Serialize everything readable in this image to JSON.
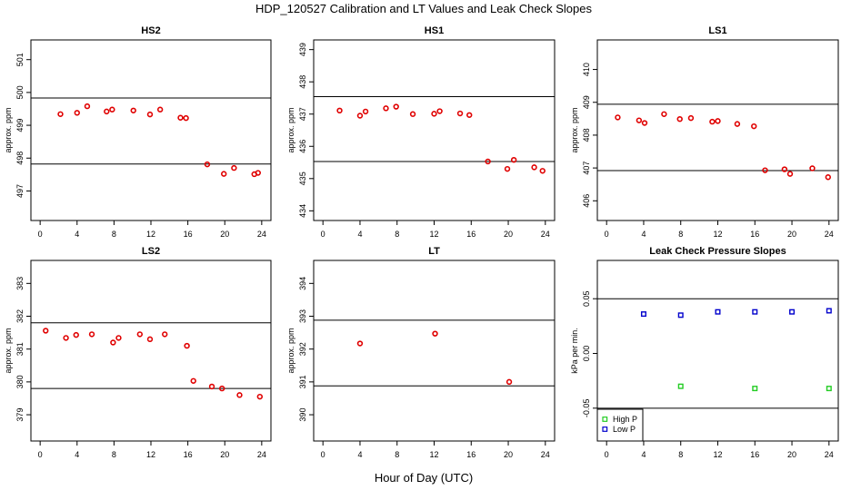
{
  "title": "HDP_120527  Calibration and LT Values and Leak Check Slopes",
  "xlabel": "Hour of Day (UTC)",
  "colors": {
    "calibration_points": "#e00000",
    "high_p": "#22cc22",
    "low_p": "#0000cc"
  },
  "chart_data": [
    {
      "id": "hs2",
      "type": "scatter",
      "title": "HS2",
      "ylabel": "approx. ppm",
      "xlim": [
        -1,
        25
      ],
      "xticks": [
        0,
        4,
        8,
        12,
        16,
        20,
        24
      ],
      "ylim": [
        496.1,
        501.6
      ],
      "yticks": [
        497,
        498,
        499,
        500,
        501
      ],
      "hlines": [
        499.83,
        497.82
      ],
      "series": [
        {
          "x": [
            2.2,
            4.0,
            5.1,
            7.2,
            7.8,
            10.1,
            11.9,
            13.0,
            15.2,
            15.8,
            18.1,
            19.9,
            21.0,
            23.2,
            23.6
          ],
          "y": [
            499.34,
            499.38,
            499.58,
            499.42,
            499.48,
            499.45,
            499.33,
            499.48,
            499.23,
            499.22,
            497.81,
            497.52,
            497.7,
            497.51,
            497.55
          ]
        }
      ]
    },
    {
      "id": "hs1",
      "type": "scatter",
      "title": "HS1",
      "ylabel": "approx. ppm",
      "xlim": [
        -1,
        25
      ],
      "xticks": [
        0,
        4,
        8,
        12,
        16,
        20,
        24
      ],
      "ylim": [
        433.7,
        439.3
      ],
      "yticks": [
        434,
        435,
        436,
        437,
        438,
        439
      ],
      "hlines": [
        437.54,
        435.53
      ],
      "series": [
        {
          "x": [
            1.8,
            4.0,
            4.6,
            6.8,
            7.9,
            9.7,
            12.0,
            12.6,
            14.8,
            15.8,
            17.8,
            19.9,
            20.6,
            22.8,
            23.7
          ],
          "y": [
            437.11,
            436.95,
            437.08,
            437.18,
            437.23,
            437.0,
            437.01,
            437.09,
            437.02,
            436.97,
            435.53,
            435.3,
            435.58,
            435.35,
            435.24
          ]
        }
      ]
    },
    {
      "id": "ls1",
      "type": "scatter",
      "title": "LS1",
      "ylabel": "approx. ppm",
      "xlim": [
        -1,
        25
      ],
      "xticks": [
        0,
        4,
        8,
        12,
        16,
        20,
        24
      ],
      "ylim": [
        405.4,
        410.9
      ],
      "yticks": [
        406,
        407,
        408,
        409,
        410
      ],
      "hlines": [
        408.94,
        406.92
      ],
      "series": [
        {
          "x": [
            1.2,
            3.5,
            4.1,
            6.2,
            7.9,
            9.1,
            11.4,
            12.0,
            14.1,
            15.9,
            17.1,
            19.2,
            19.8,
            22.2,
            23.9
          ],
          "y": [
            408.54,
            408.45,
            408.37,
            408.64,
            408.49,
            408.52,
            408.41,
            408.43,
            408.34,
            408.27,
            406.93,
            406.96,
            406.82,
            406.99,
            406.72
          ]
        }
      ]
    },
    {
      "id": "ls2",
      "type": "scatter",
      "title": "LS2",
      "ylabel": "approx. ppm",
      "xlim": [
        -1,
        25
      ],
      "xticks": [
        0,
        4,
        8,
        12,
        16,
        20,
        24
      ],
      "ylim": [
        378.2,
        383.7
      ],
      "yticks": [
        379,
        380,
        381,
        382,
        383
      ],
      "hlines": [
        381.8,
        379.8
      ],
      "series": [
        {
          "x": [
            0.6,
            2.8,
            3.9,
            5.6,
            7.9,
            8.5,
            10.8,
            11.9,
            13.5,
            15.9,
            16.6,
            18.6,
            19.7,
            21.6,
            23.8
          ],
          "y": [
            381.56,
            381.34,
            381.43,
            381.45,
            381.2,
            381.34,
            381.45,
            381.3,
            381.45,
            381.1,
            380.03,
            379.86,
            379.8,
            379.6,
            379.55
          ]
        }
      ]
    },
    {
      "id": "lt",
      "type": "scatter",
      "title": "LT",
      "ylabel": "approx. ppm",
      "xlim": [
        -1,
        25
      ],
      "xticks": [
        0,
        4,
        8,
        12,
        16,
        20,
        24
      ],
      "ylim": [
        389.2,
        394.7
      ],
      "yticks": [
        390,
        391,
        392,
        393,
        394
      ],
      "hlines": [
        392.88,
        390.88
      ],
      "series": [
        {
          "x": [
            4.0,
            12.1,
            20.1
          ],
          "y": [
            392.17,
            392.47,
            391.0
          ]
        }
      ]
    },
    {
      "id": "leak",
      "type": "scatter",
      "title": "Leak Check Pressure Slopes",
      "ylabel": "kPa per min.",
      "xlim": [
        -1,
        25
      ],
      "xticks": [
        0,
        4,
        8,
        12,
        16,
        20,
        24
      ],
      "ylim": [
        -0.08,
        0.085
      ],
      "yticks": [
        -0.05,
        0.0,
        0.05
      ],
      "ytick_labels": [
        "-0.05",
        "0.00",
        "0.05"
      ],
      "hlines": [
        0.05,
        -0.05
      ],
      "legend": {
        "placement": "bottom-left",
        "entries": [
          "High P",
          "Low P"
        ]
      },
      "series": [
        {
          "name": "High P",
          "x": [
            8.0,
            16.0,
            24.0
          ],
          "y": [
            -0.03,
            -0.032,
            -0.032
          ]
        },
        {
          "name": "Low P",
          "x": [
            4.0,
            8.0,
            12.0,
            16.0,
            20.0,
            24.0
          ],
          "y": [
            0.036,
            0.035,
            0.038,
            0.038,
            0.038,
            0.039
          ]
        }
      ]
    }
  ]
}
